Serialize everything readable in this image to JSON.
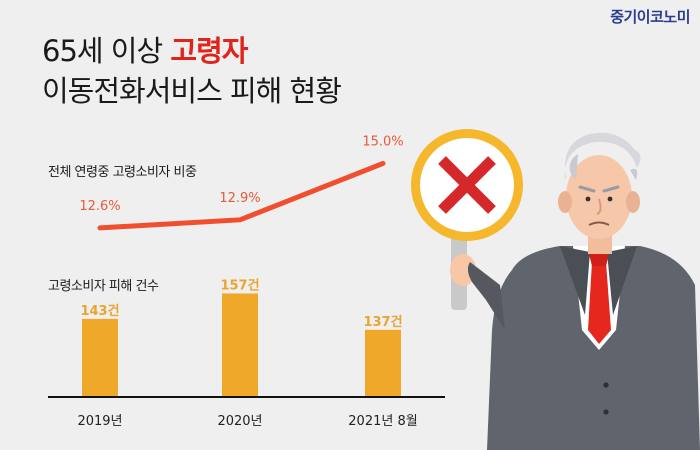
{
  "brand": "중기이코노미",
  "title": {
    "prefix": "65세 이상 ",
    "highlight": "고령자",
    "line2": "이동전화서비스 피해 현황"
  },
  "colors": {
    "accent": "#e2231a",
    "line": "#f04e2f",
    "bar": "#f0a82a",
    "brand": "#2b3d8f"
  },
  "chart_data": [
    {
      "type": "line",
      "title": "전체 연령중 고령소비자 비중",
      "x": [
        "2019년",
        "2020년",
        "2021년 8월"
      ],
      "values": [
        12.6,
        12.9,
        15.0
      ],
      "value_labels": [
        "12.6%",
        "12.9%",
        "15.0%"
      ],
      "unit": "%"
    },
    {
      "type": "bar",
      "title": "고령소비자 피해 건수",
      "categories": [
        "2019년",
        "2020년",
        "2021년 8월"
      ],
      "values": [
        143,
        157,
        137
      ],
      "value_labels": [
        "143건",
        "157건",
        "137건"
      ],
      "unit": "건"
    }
  ],
  "illustration": {
    "icon": "x-mark-sign-icon",
    "figure": "elderly-man-icon"
  }
}
